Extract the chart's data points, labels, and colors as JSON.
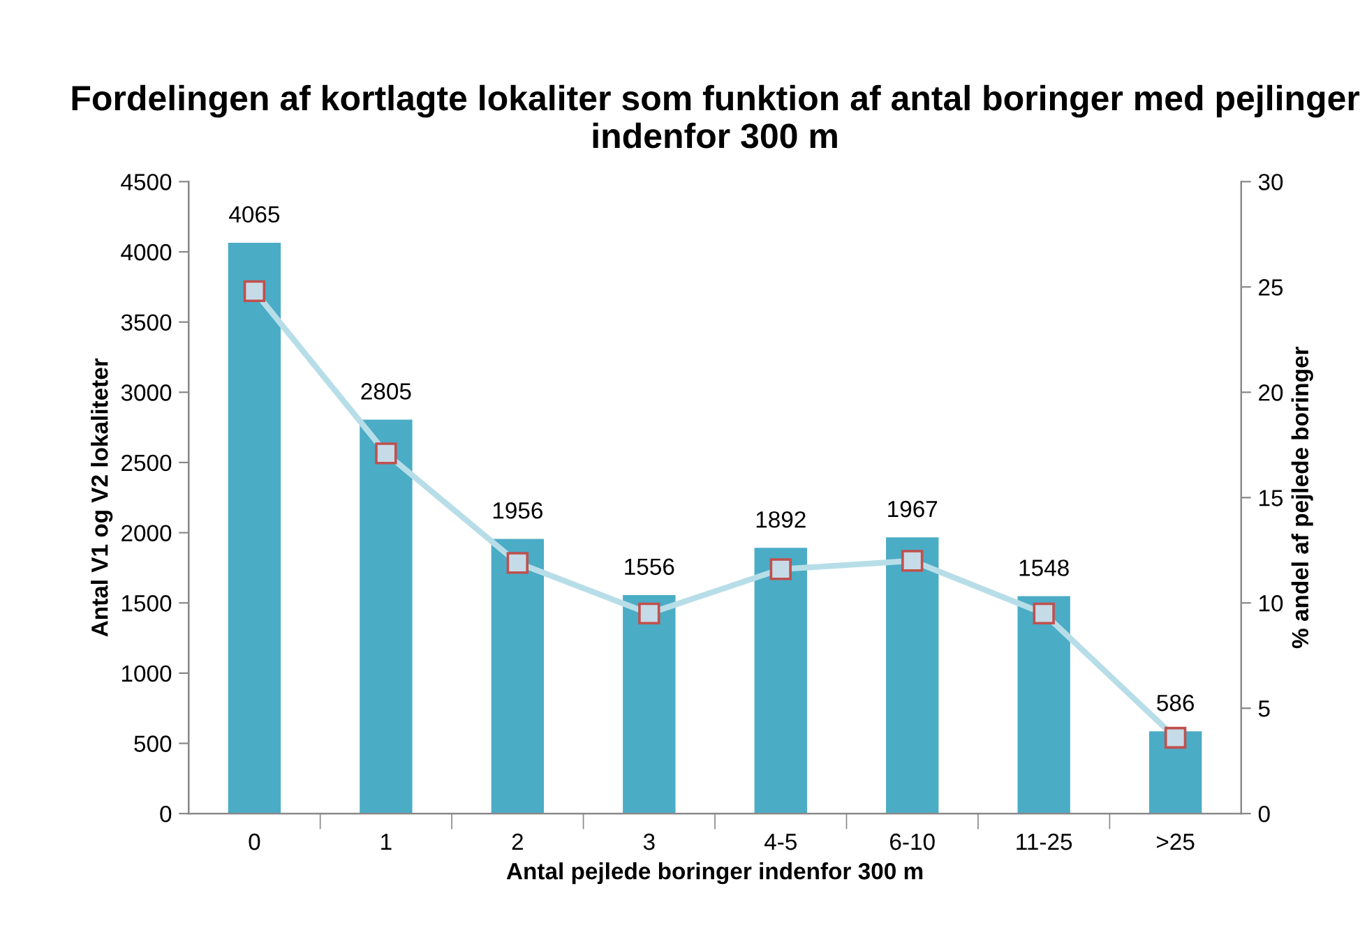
{
  "chart_data": {
    "type": "bar",
    "title": "Fordelingen af kortlagte lokaliter som funktion af antal boringer med pejlinger indenfor 300 m",
    "xlabel": "Antal pejlede boringer indenfor 300 m",
    "ylabel": "Antal V1 og V2 lokaliteter",
    "y2label": "% andel af pejlede boringer",
    "categories": [
      "0",
      "1",
      "2",
      "3",
      "4-5",
      "6-10",
      "11-25",
      ">25"
    ],
    "series": [
      {
        "color": "#4bacc6",
        "values": [
          4065,
          2805,
          1956,
          1556,
          1892,
          1967,
          1548,
          586
        ],
        "value_labels": [
          "4065",
          "2805",
          "1956",
          "1556",
          "1892",
          "1967",
          "1548",
          "586"
        ]
      },
      {
        "type": "line",
        "axis": "y2",
        "color": "#b7dee8",
        "marker": "square",
        "values": [
          24.8,
          17.1,
          11.9,
          9.5,
          11.6,
          12.0,
          9.5,
          3.6
        ]
      }
    ],
    "ylim": [
      0,
      4500
    ],
    "yticks": [
      0,
      500,
      1000,
      1500,
      2000,
      2500,
      3000,
      3500,
      4000,
      4500
    ],
    "y2lim": [
      0,
      30
    ],
    "y2ticks": [
      0,
      5,
      10,
      15,
      20,
      25,
      30
    ],
    "grid": false,
    "legend": false
  }
}
